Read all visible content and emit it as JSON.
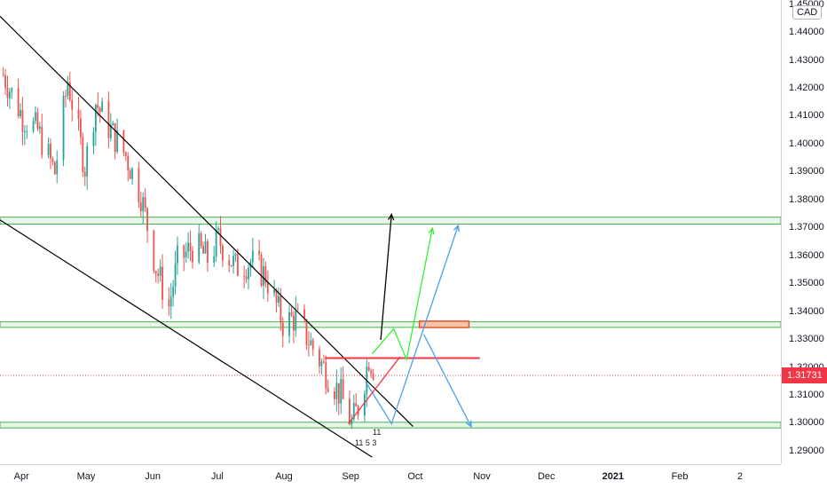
{
  "symbol_currency": "CAD",
  "last_price": "1.31731",
  "colors": {
    "up": "#26a69a",
    "down": "#ef5350",
    "trendline": "#000000",
    "zone_fill": "#e8f5e9",
    "zone_border": "#4caf50",
    "resistance": "#f23645",
    "path_black": "#000000",
    "path_green": "#33ee33",
    "path_blue": "#4a9fe8",
    "last_price_line": "#f23645"
  },
  "event_labels": [
    "11",
    "11 5 3"
  ],
  "chart_data": {
    "type": "candlestick",
    "title": "",
    "xlabel": "",
    "ylabel": "",
    "y_tick_labels": [
      "1.45000",
      "1.44000",
      "1.43000",
      "1.42000",
      "1.41000",
      "1.40000",
      "1.39000",
      "1.38000",
      "1.37000",
      "1.36000",
      "1.35000",
      "1.34000",
      "1.33000",
      "1.32000",
      "1.31000",
      "1.30000",
      "1.29000"
    ],
    "x_tick_labels": [
      {
        "label": "Apr",
        "date": "2020-04-01"
      },
      {
        "label": "May",
        "date": "2020-05-01"
      },
      {
        "label": "Jun",
        "date": "2020-06-01"
      },
      {
        "label": "Jul",
        "date": "2020-07-01"
      },
      {
        "label": "Aug",
        "date": "2020-08-01"
      },
      {
        "label": "Sep",
        "date": "2020-09-01"
      },
      {
        "label": "Oct",
        "date": "2020-10-01"
      },
      {
        "label": "Nov",
        "date": "2020-11-01"
      },
      {
        "label": "Dec",
        "date": "2020-12-01"
      },
      {
        "label": "2021",
        "date": "2021-01-01",
        "bold": true
      },
      {
        "label": "Feb",
        "date": "2021-02-01"
      },
      {
        "label": "2",
        "date": "2021-03-01"
      }
    ],
    "ylim": [
      1.2855,
      1.4518
    ],
    "xlim": [
      "2020-03-22",
      "2021-03-20"
    ],
    "last_price": 1.31731,
    "price_path": [
      [
        "2020-03-23",
        1.425
      ],
      [
        "2020-04-01",
        1.41
      ],
      [
        "2020-04-08",
        1.405
      ],
      [
        "2020-04-16",
        1.39
      ],
      [
        "2020-04-22",
        1.423
      ],
      [
        "2020-04-30",
        1.392
      ],
      [
        "2020-05-05",
        1.415
      ],
      [
        "2020-05-12",
        1.405
      ],
      [
        "2020-05-19",
        1.396
      ],
      [
        "2020-05-26",
        1.382
      ],
      [
        "2020-06-02",
        1.356
      ],
      [
        "2020-06-08",
        1.342
      ],
      [
        "2020-06-12",
        1.358
      ],
      [
        "2020-06-20",
        1.364
      ],
      [
        "2020-06-26",
        1.359
      ],
      [
        "2020-07-01",
        1.366
      ],
      [
        "2020-07-09",
        1.356
      ],
      [
        "2020-07-16",
        1.358
      ],
      [
        "2020-07-23",
        1.353
      ],
      [
        "2020-07-31",
        1.336
      ],
      [
        "2020-08-06",
        1.338
      ],
      [
        "2020-08-12",
        1.33
      ],
      [
        "2020-08-19",
        1.32
      ],
      [
        "2020-08-27",
        1.31
      ],
      [
        "2020-09-01",
        1.3
      ],
      [
        "2020-09-05",
        1.308
      ],
      [
        "2020-09-09",
        1.324
      ],
      [
        "2020-09-13",
        1.317
      ]
    ],
    "trendlines": [
      {
        "name": "upper-channel",
        "from": [
          "2020-03-22",
          1.446
        ],
        "to": [
          "2020-09-30",
          1.299
        ]
      },
      {
        "name": "lower-channel",
        "from": [
          "2020-03-22",
          1.373
        ],
        "to": [
          "2020-09-11",
          1.288
        ]
      }
    ],
    "zones": [
      {
        "from": 1.3715,
        "to": 1.374
      },
      {
        "from": 1.3345,
        "to": 1.3365
      },
      {
        "from": 1.2985,
        "to": 1.3005
      }
    ],
    "resistance_line": {
      "price": 1.3235,
      "from": "2020-08-20",
      "to": "2020-10-31"
    },
    "highlight_box": {
      "from_date": "2020-10-03",
      "to_date": "2020-10-26",
      "from": 1.3351,
      "to": 1.3361
    },
    "projections": [
      {
        "name": "black",
        "points": [
          [
            "2020-09-15",
            1.33
          ],
          [
            "2020-09-20",
            1.375
          ]
        ]
      },
      {
        "name": "green",
        "points": [
          [
            "2020-09-11",
            1.325
          ],
          [
            "2020-09-21",
            1.334
          ],
          [
            "2020-09-27",
            1.323
          ],
          [
            "2020-10-09",
            1.37
          ]
        ]
      },
      {
        "name": "blue-1",
        "points": [
          [
            "2020-09-08",
            1.315
          ],
          [
            "2020-09-20",
            1.3
          ],
          [
            "2020-10-21",
            1.371
          ]
        ]
      },
      {
        "name": "blue-2",
        "points": [
          [
            "2020-10-05",
            1.332
          ],
          [
            "2020-10-27",
            1.299
          ]
        ]
      },
      {
        "name": "red-up",
        "points": [
          [
            "2020-08-31",
            1.3
          ],
          [
            "2020-09-24",
            1.324
          ]
        ]
      }
    ]
  }
}
